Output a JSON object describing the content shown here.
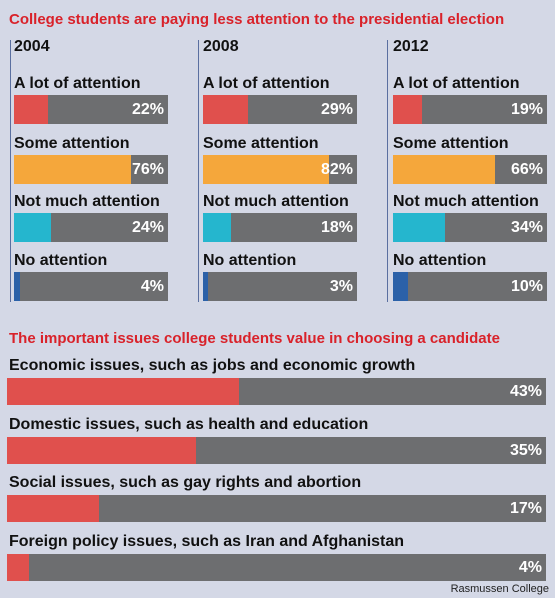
{
  "chart_data": [
    {
      "type": "bar",
      "title": "College students are paying less attention to the presidential election",
      "categories": [
        "A lot of attention",
        "Some attention",
        "Not much attention",
        "No attention"
      ],
      "colors": [
        "#e0504d",
        "#f5a73b",
        "#25b6ce",
        "#2b61a8"
      ],
      "groups": [
        {
          "name": "2004",
          "values": [
            22,
            76,
            24,
            4
          ],
          "labels": [
            "22%",
            "76%",
            "24%",
            "4%"
          ]
        },
        {
          "name": "2008",
          "values": [
            29,
            82,
            18,
            3
          ],
          "labels": [
            "29%",
            "82%",
            "18%",
            "3%"
          ]
        },
        {
          "name": "2012",
          "values": [
            19,
            66,
            34,
            10
          ],
          "labels": [
            "19%",
            "66%",
            "34%",
            "10%"
          ]
        }
      ],
      "xlim": [
        0,
        100
      ]
    },
    {
      "type": "bar",
      "title": "The important issues college students value in choosing a candidate",
      "categories": [
        "Economic issues, such as jobs and economic growth",
        "Domestic issues, such as health and education",
        "Social issues, such as gay rights and abortion",
        "Foreign policy issues, such as Iran and Afghanistan"
      ],
      "values": [
        43,
        35,
        17,
        4
      ],
      "labels": [
        "43%",
        "35%",
        "17%",
        "4%"
      ],
      "color": "#e0504d",
      "xlim": [
        0,
        100
      ]
    }
  ],
  "source": "Rasmussen College"
}
